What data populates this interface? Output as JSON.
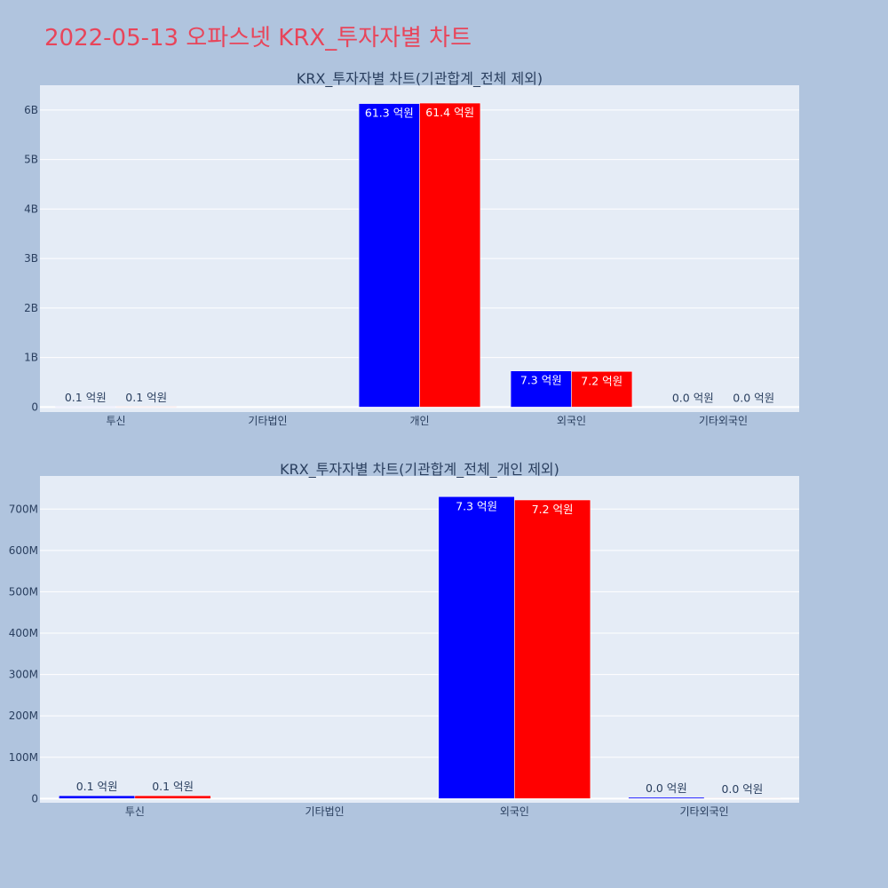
{
  "page": {
    "title": "2022-05-13 오파스넷 KRX_투자자별 차트"
  },
  "colors": {
    "page_background": "#b0c4de",
    "plot_background": "#e5ecf6",
    "series_1": "#0000ff",
    "series_2": "#ff0000",
    "title": "#e8455a",
    "text": "#2a3f5f"
  },
  "chart_data": [
    {
      "type": "bar",
      "title": "KRX_투자자별 차트(기관합계_전체 제외)",
      "categories": [
        "투신",
        "기타법인",
        "개인",
        "외국인",
        "기타외국인"
      ],
      "ylim": [
        -100000000,
        6500000000
      ],
      "yticks": [
        0,
        1000000000,
        2000000000,
        3000000000,
        4000000000,
        5000000000,
        6000000000
      ],
      "ytick_labels": [
        "0",
        "1B",
        "2B",
        "3B",
        "4B",
        "5B",
        "6B"
      ],
      "grid": true,
      "series": [
        {
          "values": [
            10000000,
            0,
            6130000000,
            730000000,
            0
          ],
          "labels": [
            "0.1 억원",
            "",
            "61.3 억원",
            "7.3 억원",
            "0.0 억원"
          ]
        },
        {
          "values": [
            10000000,
            0,
            6140000000,
            720000000,
            0
          ],
          "labels": [
            "0.1 억원",
            "",
            "61.4 억원",
            "7.2 억원",
            "0.0 억원"
          ]
        }
      ]
    },
    {
      "type": "bar",
      "title": "KRX_투자자별 차트(기관합계_전체_개인 제외)",
      "categories": [
        "투신",
        "기타법인",
        "외국인",
        "기타외국인"
      ],
      "ylim": [
        -10000000,
        780000000
      ],
      "yticks": [
        0,
        100000000,
        200000000,
        300000000,
        400000000,
        500000000,
        600000000,
        700000000
      ],
      "ytick_labels": [
        "0",
        "100M",
        "200M",
        "300M",
        "400M",
        "500M",
        "600M",
        "700M"
      ],
      "grid": true,
      "series": [
        {
          "values": [
            7000000,
            0,
            730000000,
            3000000
          ],
          "labels": [
            "0.1 억원",
            "",
            "7.3 억원",
            "0.0 억원"
          ]
        },
        {
          "values": [
            7000000,
            0,
            722000000,
            1000000
          ],
          "labels": [
            "0.1 억원",
            "",
            "7.2 억원",
            "0.0 억원"
          ]
        }
      ]
    }
  ]
}
